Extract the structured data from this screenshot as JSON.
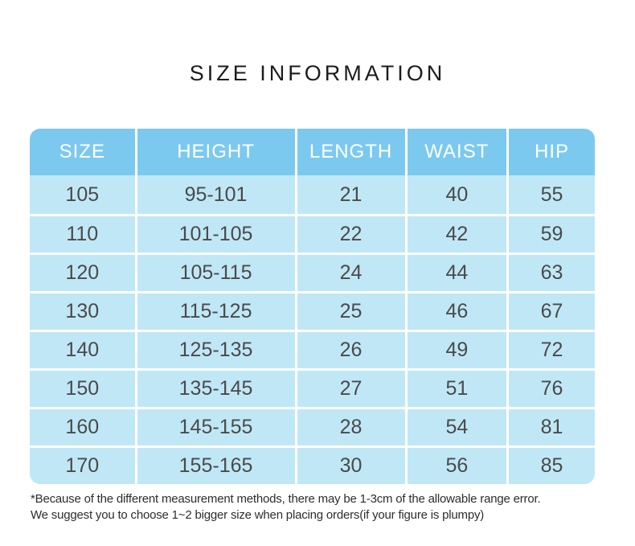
{
  "page": {
    "title": "SIZE INFORMATION"
  },
  "chart_data": {
    "type": "table",
    "title": "SIZE INFORMATION",
    "columns": [
      "SIZE",
      "HEIGHT",
      "LENGTH",
      "WAIST",
      "HIP"
    ],
    "rows": [
      [
        "105",
        "95-101",
        "21",
        "40",
        "55"
      ],
      [
        "110",
        "101-105",
        "22",
        "42",
        "59"
      ],
      [
        "120",
        "105-115",
        "24",
        "44",
        "63"
      ],
      [
        "130",
        "115-125",
        "25",
        "46",
        "67"
      ],
      [
        "140",
        "125-135",
        "26",
        "49",
        "72"
      ],
      [
        "150",
        "135-145",
        "27",
        "51",
        "76"
      ],
      [
        "160",
        "145-155",
        "28",
        "54",
        "81"
      ],
      [
        "170",
        "155-165",
        "30",
        "56",
        "85"
      ]
    ]
  },
  "footnote": {
    "line1": "*Because of the different measurement methods, there may be 1-3cm of the allowable range error.",
    "line2": "We suggest you to choose 1~2 bigger size when placing orders(if your figure is plumpy)"
  },
  "colors": {
    "header_bg": "#7cc9f0",
    "row_bg": "#c0e7f6",
    "separator": "#ffffff",
    "header_text": "#ffffff",
    "body_text": "#4a4a4a",
    "title_text": "#1c1c1c"
  }
}
